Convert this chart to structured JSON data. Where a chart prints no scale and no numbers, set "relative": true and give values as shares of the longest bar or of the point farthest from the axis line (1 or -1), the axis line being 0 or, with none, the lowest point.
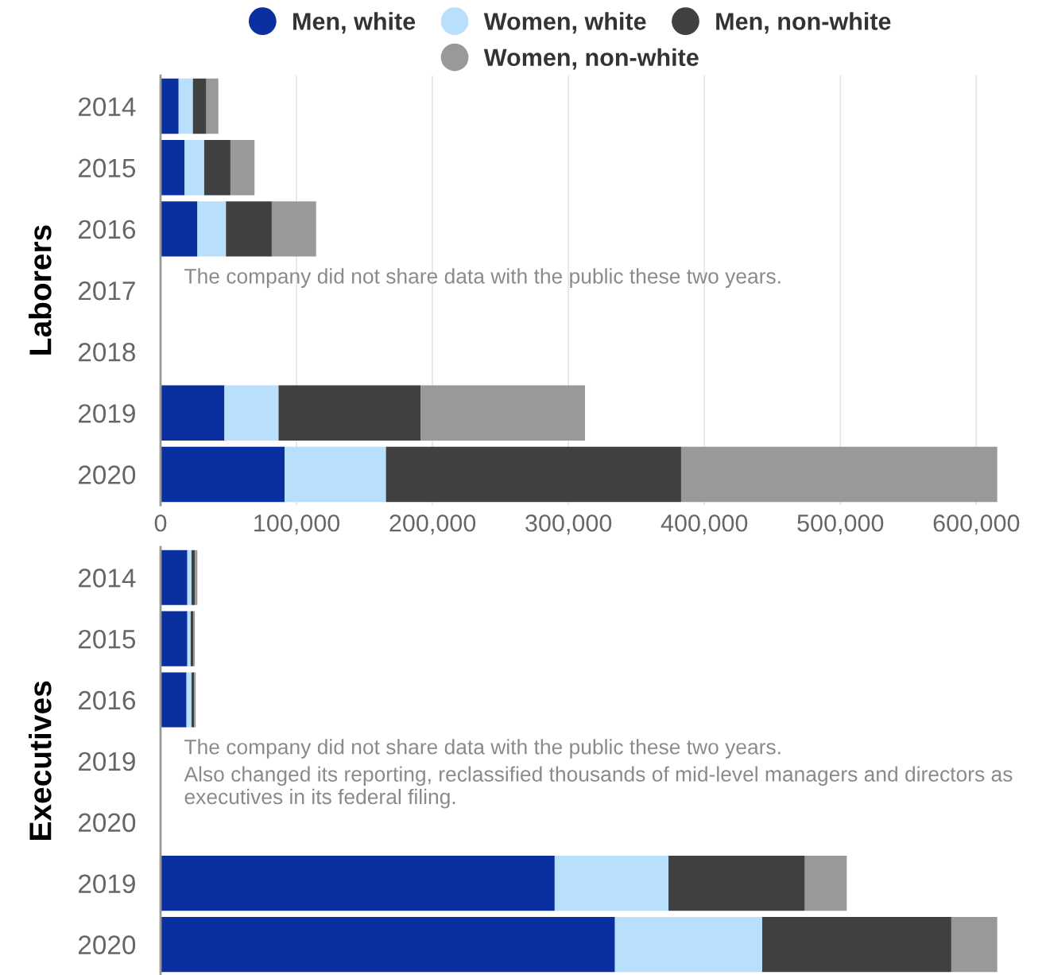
{
  "chart_data": [
    {
      "type": "bar",
      "orientation": "horizontal",
      "stacked": true,
      "ylabel": "Laborers",
      "categories": [
        "2014",
        "2015",
        "2016",
        "2017",
        "2018",
        "2019",
        "2020"
      ],
      "series": [
        {
          "name": "Men, white",
          "color": "#0a2f9e",
          "values": [
            13300,
            17700,
            27100,
            null,
            null,
            47000,
            91200
          ]
        },
        {
          "name": "Women, white",
          "color": "#b8dffb",
          "values": [
            10500,
            14400,
            21000,
            null,
            null,
            39800,
            74600
          ]
        },
        {
          "name": "Men, non-white",
          "color": "#404040",
          "values": [
            9900,
            19300,
            33700,
            null,
            null,
            104400,
            217100
          ]
        },
        {
          "name": "Women, non-white",
          "color": "#999999",
          "values": [
            8800,
            17700,
            32600,
            null,
            null,
            121000,
            232600
          ]
        }
      ],
      "xlim": [
        0,
        615500
      ],
      "xticks": [
        0,
        {
          "value": 100000,
          "label": "100,000"
        },
        {
          "value": 200000,
          "label": "200,000"
        },
        {
          "value": 300000,
          "label": "300,000"
        },
        {
          "value": 400000,
          "label": "400,000"
        },
        {
          "value": 500000,
          "label": "500,000"
        },
        {
          "value": 600000,
          "label": "600,000"
        }
      ],
      "grid": "x",
      "legend": "top",
      "annotations": [
        "The company did not share data with the public these two years."
      ]
    },
    {
      "type": "bar",
      "orientation": "horizontal",
      "stacked": true,
      "relative": true,
      "ylabel": "Executives",
      "categories": [
        "2014",
        "2015",
        "2016",
        "2019",
        "2020",
        "2019",
        "2020"
      ],
      "series": [
        {
          "color": "#0a2f9e",
          "values": [
            0.032,
            0.032,
            0.031,
            null,
            null,
            0.471,
            0.543
          ]
        },
        {
          "color": "#b8dffb",
          "values": [
            0.005,
            0.004,
            0.006,
            null,
            null,
            0.136,
            0.176
          ]
        },
        {
          "color": "#404040",
          "values": [
            0.004,
            0.003,
            0.003,
            null,
            null,
            0.163,
            0.226
          ]
        },
        {
          "color": "#999999",
          "values": [
            0.003,
            0.002,
            0.002,
            null,
            null,
            0.05,
            0.055
          ]
        }
      ],
      "tick_labels": "y",
      "annotations": [
        "The company did not share data with the public these two years.",
        "Also changed its reporting, reclassified thousands of mid-level managers and directors as executives in its federal filing."
      ]
    }
  ]
}
